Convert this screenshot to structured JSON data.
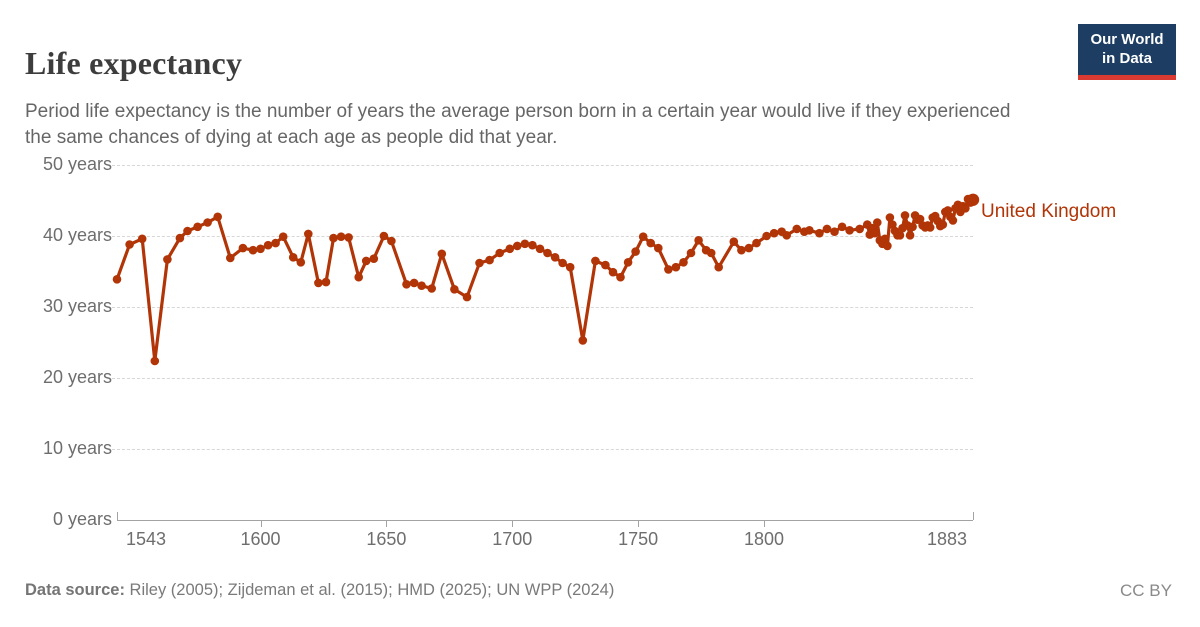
{
  "header": {
    "title": "Life expectancy",
    "subtitle": "Period life expectancy is the number of years the average person born in a certain year would live if they experienced the same chances of dying at each age as people did that year."
  },
  "logo": {
    "line1": "Our World",
    "line2": "in Data",
    "bg_color": "#1d3d63",
    "bar_color": "#d93a32"
  },
  "footer": {
    "source_label": "Data source:",
    "source_text": " Riley (2005); Zijdeman et al. (2015); HMD (2025); UN WPP (2024)",
    "license": "CC BY"
  },
  "chart_data": {
    "type": "line",
    "title": "Life expectancy",
    "xlabel": "",
    "ylabel": "",
    "grid": "dashed-horizontal",
    "legend_position": "end-of-line-label",
    "x_axis": {
      "min": 1543,
      "max": 1883,
      "tick_years": [
        1543,
        1600,
        1650,
        1700,
        1750,
        1800,
        1883
      ],
      "tick_labels": [
        "1543",
        "1600",
        "1650",
        "1700",
        "1750",
        "1800",
        "1883"
      ]
    },
    "y_axis": {
      "min": 0,
      "max": 50,
      "tick_values": [
        0,
        10,
        20,
        30,
        40,
        50
      ],
      "tick_labels": [
        "0 years",
        "10 years",
        "20 years",
        "30 years",
        "40 years",
        "50 years"
      ]
    },
    "series": [
      {
        "name": "United Kingdom",
        "color": "#b13507",
        "points": [
          [
            1543,
            33.9
          ],
          [
            1548,
            38.8
          ],
          [
            1553,
            39.6
          ],
          [
            1558,
            22.4
          ],
          [
            1563,
            36.7
          ],
          [
            1568,
            39.7
          ],
          [
            1571,
            40.7
          ],
          [
            1575,
            41.3
          ],
          [
            1579,
            41.9
          ],
          [
            1583,
            42.7
          ],
          [
            1588,
            36.9
          ],
          [
            1593,
            38.3
          ],
          [
            1597,
            38.0
          ],
          [
            1600,
            38.2
          ],
          [
            1603,
            38.7
          ],
          [
            1606,
            39.0
          ],
          [
            1609,
            39.9
          ],
          [
            1613,
            37.0
          ],
          [
            1616,
            36.3
          ],
          [
            1619,
            40.3
          ],
          [
            1623,
            33.4
          ],
          [
            1626,
            33.5
          ],
          [
            1629,
            39.7
          ],
          [
            1632,
            39.9
          ],
          [
            1635,
            39.8
          ],
          [
            1639,
            34.2
          ],
          [
            1642,
            36.5
          ],
          [
            1645,
            36.8
          ],
          [
            1649,
            40.0
          ],
          [
            1652,
            39.3
          ],
          [
            1658,
            33.2
          ],
          [
            1661,
            33.4
          ],
          [
            1664,
            33.0
          ],
          [
            1668,
            32.6
          ],
          [
            1672,
            37.5
          ],
          [
            1677,
            32.5
          ],
          [
            1682,
            31.4
          ],
          [
            1687,
            36.2
          ],
          [
            1691,
            36.6
          ],
          [
            1695,
            37.6
          ],
          [
            1699,
            38.2
          ],
          [
            1702,
            38.6
          ],
          [
            1705,
            38.9
          ],
          [
            1708,
            38.7
          ],
          [
            1711,
            38.2
          ],
          [
            1714,
            37.6
          ],
          [
            1717,
            37.0
          ],
          [
            1720,
            36.2
          ],
          [
            1723,
            35.6
          ],
          [
            1728,
            25.3
          ],
          [
            1733,
            36.5
          ],
          [
            1737,
            35.9
          ],
          [
            1740,
            34.9
          ],
          [
            1743,
            34.2
          ],
          [
            1746,
            36.3
          ],
          [
            1749,
            37.8
          ],
          [
            1752,
            39.9
          ],
          [
            1755,
            39.0
          ],
          [
            1758,
            38.3
          ],
          [
            1762,
            35.3
          ],
          [
            1765,
            35.6
          ],
          [
            1768,
            36.3
          ],
          [
            1771,
            37.6
          ],
          [
            1774,
            39.4
          ],
          [
            1777,
            38.0
          ],
          [
            1779,
            37.6
          ],
          [
            1782,
            35.6
          ],
          [
            1788,
            39.2
          ],
          [
            1791,
            38.0
          ],
          [
            1794,
            38.3
          ],
          [
            1797,
            39.0
          ],
          [
            1801,
            40.0
          ],
          [
            1804,
            40.4
          ],
          [
            1807,
            40.6
          ],
          [
            1809,
            40.1
          ],
          [
            1813,
            41.0
          ],
          [
            1816,
            40.6
          ],
          [
            1818,
            40.8
          ],
          [
            1822,
            40.4
          ],
          [
            1825,
            41.0
          ],
          [
            1828,
            40.6
          ],
          [
            1831,
            41.3
          ],
          [
            1834,
            40.8
          ],
          [
            1838,
            41.0
          ],
          [
            1841,
            41.6
          ],
          [
            1842,
            40.2
          ],
          [
            1843,
            41.1
          ],
          [
            1844,
            40.4
          ],
          [
            1845,
            41.9
          ],
          [
            1846,
            39.4
          ],
          [
            1847,
            38.9
          ],
          [
            1848,
            39.6
          ],
          [
            1849,
            38.6
          ],
          [
            1850,
            42.6
          ],
          [
            1851,
            41.6
          ],
          [
            1852,
            40.7
          ],
          [
            1853,
            40.1
          ],
          [
            1854,
            40.1
          ],
          [
            1855,
            41.1
          ],
          [
            1856,
            42.9
          ],
          [
            1857,
            41.5
          ],
          [
            1858,
            40.1
          ],
          [
            1859,
            41.3
          ],
          [
            1860,
            42.9
          ],
          [
            1861,
            42.3
          ],
          [
            1862,
            42.4
          ],
          [
            1863,
            41.5
          ],
          [
            1864,
            41.2
          ],
          [
            1865,
            41.5
          ],
          [
            1866,
            41.2
          ],
          [
            1867,
            42.6
          ],
          [
            1868,
            42.8
          ],
          [
            1869,
            42.1
          ],
          [
            1870,
            41.4
          ],
          [
            1871,
            41.6
          ],
          [
            1872,
            43.4
          ],
          [
            1873,
            43.6
          ],
          [
            1874,
            42.7
          ],
          [
            1875,
            42.2
          ],
          [
            1876,
            43.9
          ],
          [
            1877,
            44.4
          ],
          [
            1878,
            43.4
          ],
          [
            1879,
            44.2
          ],
          [
            1880,
            43.9
          ],
          [
            1881,
            45.2
          ],
          [
            1882,
            44.7
          ],
          [
            1883,
            45.1
          ]
        ]
      }
    ]
  }
}
